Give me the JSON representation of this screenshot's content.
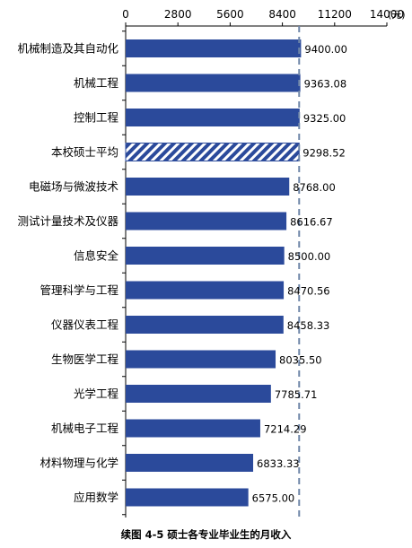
{
  "chart_data": {
    "type": "bar",
    "orientation": "horizontal",
    "categories": [
      "机械制造及其自动化",
      "机械工程",
      "控制工程",
      "本校硕士平均",
      "电磁场与微波技术",
      "测试计量技术及仪器",
      "信息安全",
      "管理科学与工程",
      "仪器仪表工程",
      "生物医学工程",
      "光学工程",
      "机械电子工程",
      "材料物理与化学",
      "应用数学"
    ],
    "values": [
      9400.0,
      9363.08,
      9325.0,
      9298.52,
      8768.0,
      8616.67,
      8500.0,
      8470.56,
      8458.33,
      8035.5,
      7785.71,
      7214.29,
      6833.33,
      6575.0
    ],
    "value_labels": [
      "9400.00",
      "9363.08",
      "9325.00",
      "9298.52",
      "8768.00",
      "8616.67",
      "8500.00",
      "8470.56",
      "8458.33",
      "8035.50",
      "7785.71",
      "7214.29",
      "6833.33",
      "6575.00"
    ],
    "highlight_category": "本校硕士平均",
    "xlim": [
      0,
      14000
    ],
    "x_ticks": [
      0,
      2800,
      5600,
      8400,
      11200,
      14000
    ],
    "x_tick_labels": [
      "0",
      "2800",
      "5600",
      "8400",
      "11200",
      "14000"
    ],
    "unit": "(元)",
    "axis_position": "top",
    "reference_line": 9298.52,
    "grid": false,
    "colors": {
      "bar": "#2b4a9b",
      "highlight_stripe": "#ffffff",
      "reference_line": "#6f86a8",
      "axis": "#000000"
    },
    "caption": "续图 4-5    硕士各专业毕业生的月收入"
  }
}
